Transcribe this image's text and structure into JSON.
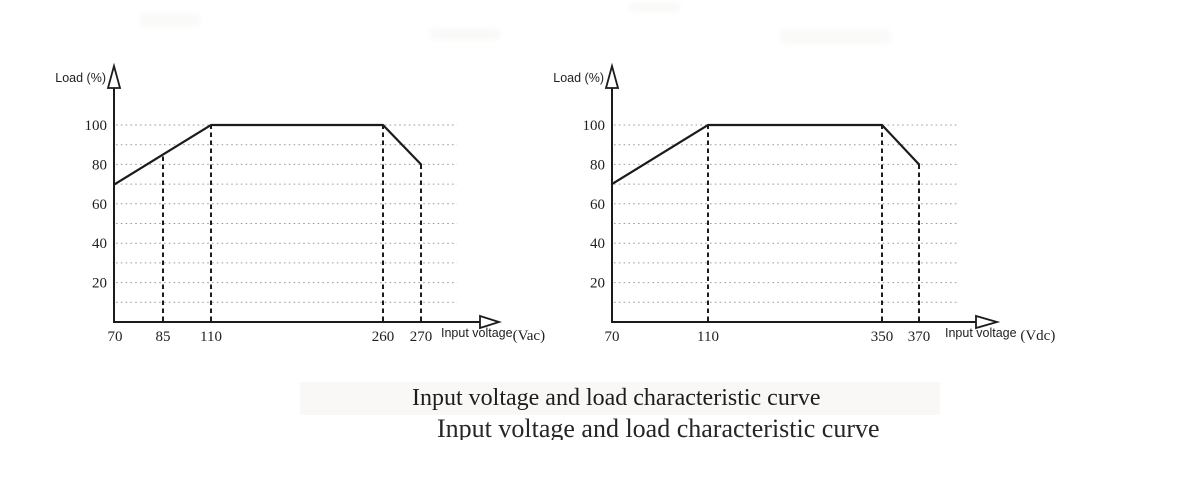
{
  "figure": {
    "captions": {
      "primary": "Input voltage and load characteristic curve",
      "secondary": "Input voltage and load characteristic curve"
    },
    "colors": {
      "line": "#1b1b1b",
      "grid": "#9c9c9c",
      "text": "#1f1f1f",
      "background": "#ffffff"
    }
  },
  "chart_data": [
    {
      "type": "line",
      "name": "input-voltage-load-curve-vac",
      "ylabel": "Load (%)",
      "xlabel": "Input voltage",
      "x_unit": "(Vac)",
      "x_ticks": [
        70,
        85,
        110,
        260,
        270
      ],
      "y_ticks": [
        20,
        40,
        60,
        80,
        100
      ],
      "ylim": [
        0,
        100
      ],
      "grid_step": 10,
      "grid": true,
      "legend": false,
      "series": [
        {
          "name": "load-vs-input-voltage-vac",
          "points": [
            [
              70,
              70
            ],
            [
              110,
              100
            ],
            [
              260,
              100
            ],
            [
              270,
              80
            ]
          ]
        }
      ],
      "dashed_guides_x": [
        85,
        110,
        260,
        270
      ]
    },
    {
      "type": "line",
      "name": "input-voltage-load-curve-vdc",
      "ylabel": "Load (%)",
      "xlabel": "Input voltage",
      "x_unit": " (Vdc)",
      "x_ticks": [
        70,
        110,
        350,
        370
      ],
      "y_ticks": [
        20,
        40,
        60,
        80,
        100
      ],
      "ylim": [
        0,
        100
      ],
      "grid_step": 10,
      "grid": true,
      "legend": false,
      "series": [
        {
          "name": "load-vs-input-voltage-vdc",
          "points": [
            [
              70,
              70
            ],
            [
              110,
              100
            ],
            [
              350,
              100
            ],
            [
              370,
              80
            ]
          ]
        }
      ],
      "dashed_guides_x": [
        110,
        350,
        370
      ]
    }
  ]
}
